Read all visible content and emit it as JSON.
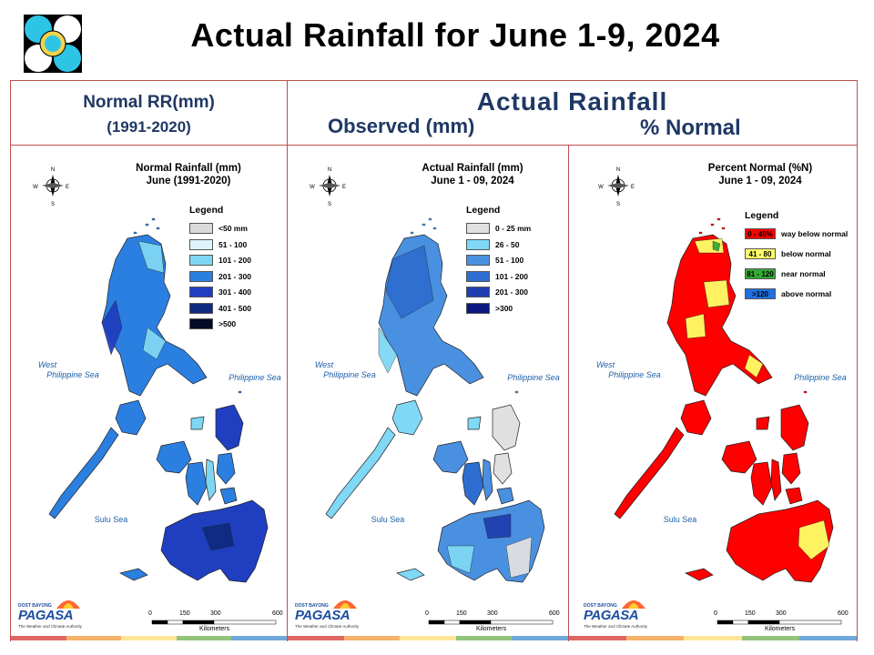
{
  "title": "Actual Rainfall for June 1-9, 2024",
  "header": {
    "left_line1": "Normal RR(mm)",
    "left_line2": "(1991-2020)",
    "center_title": "Actual Rainfall",
    "observed": "Observed (mm)",
    "percent": "% Normal"
  },
  "panels": [
    {
      "id": "normal",
      "title_line1": "Normal Rainfall (mm)",
      "title_line2": "June (1991-2020)",
      "legend_title": "Legend",
      "legend": [
        {
          "label": "<50 mm",
          "color": "#d9d9d9"
        },
        {
          "label": "51 - 100",
          "color": "#dff3fb"
        },
        {
          "label": "101 - 200",
          "color": "#7fd6f2"
        },
        {
          "label": "201 - 300",
          "color": "#2b7fe0"
        },
        {
          "label": "301 - 400",
          "color": "#1f3fc0"
        },
        {
          "label": "401 - 500",
          "color": "#102a80"
        },
        {
          "label": ">500",
          "color": "#050a25"
        }
      ]
    },
    {
      "id": "observed",
      "title_line1": "Actual Rainfall (mm)",
      "title_line2": "June 1 - 09, 2024",
      "legend_title": "Legend",
      "legend": [
        {
          "label": "0 - 25 mm",
          "color": "#e0e0e0"
        },
        {
          "label": "26 - 50",
          "color": "#7fd8f5"
        },
        {
          "label": "51 - 100",
          "color": "#4a90e0"
        },
        {
          "label": "101 - 200",
          "color": "#2e6ed0"
        },
        {
          "label": "201 - 300",
          "color": "#1f3fb0"
        },
        {
          "label": ">300",
          "color": "#0a1880"
        }
      ]
    },
    {
      "id": "percent",
      "title_line1": "Percent Normal (%N)",
      "title_line2": "June 1 - 09, 2024",
      "legend_title": "Legend",
      "legend": [
        {
          "swatch": "0 - 40%",
          "label": "way below normal",
          "color": "#ff0000"
        },
        {
          "swatch": "41 - 80",
          "label": "below normal",
          "color": "#ffff66"
        },
        {
          "swatch": "81 - 120",
          "label": "near normal",
          "color": "#33aa33"
        },
        {
          "swatch": ">120",
          "label": "above normal",
          "color": "#1f6fe0"
        }
      ]
    }
  ],
  "map_labels": {
    "west_sea_line1": "West",
    "west_sea_line2": "Philippine Sea",
    "philippine_sea": "Philippine Sea",
    "sulu_sea": "Sulu Sea"
  },
  "scale": {
    "ticks": [
      "0",
      "150",
      "300",
      "600"
    ],
    "unit": "Kilometers"
  },
  "compass": {
    "n": "N",
    "s": "S",
    "e": "E",
    "w": "W"
  },
  "branding": {
    "small": "DOST",
    "tag": "BAYONG",
    "name": "PAGASA",
    "tagline": "The Weather and Climate Authority"
  },
  "colors": {
    "frame": "#c0504d",
    "header_text": "#1f3864",
    "bar": [
      "#e06666",
      "#f6b26b",
      "#ffe599",
      "#93c47d",
      "#6fa8dc"
    ]
  }
}
